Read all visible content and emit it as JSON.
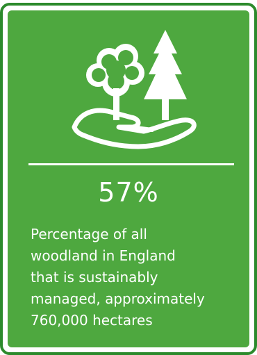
{
  "stat": {
    "value": "57%",
    "description_lines": [
      "Percentage of all",
      "woodland in England",
      "that is sustainably",
      "managed, approximately",
      "760,000 hectares"
    ]
  },
  "icon": "hand-holding-trees-icon",
  "colors": {
    "card_background": "#4ea83f",
    "card_border": "#2c8a2c",
    "foreground": "#ffffff"
  }
}
